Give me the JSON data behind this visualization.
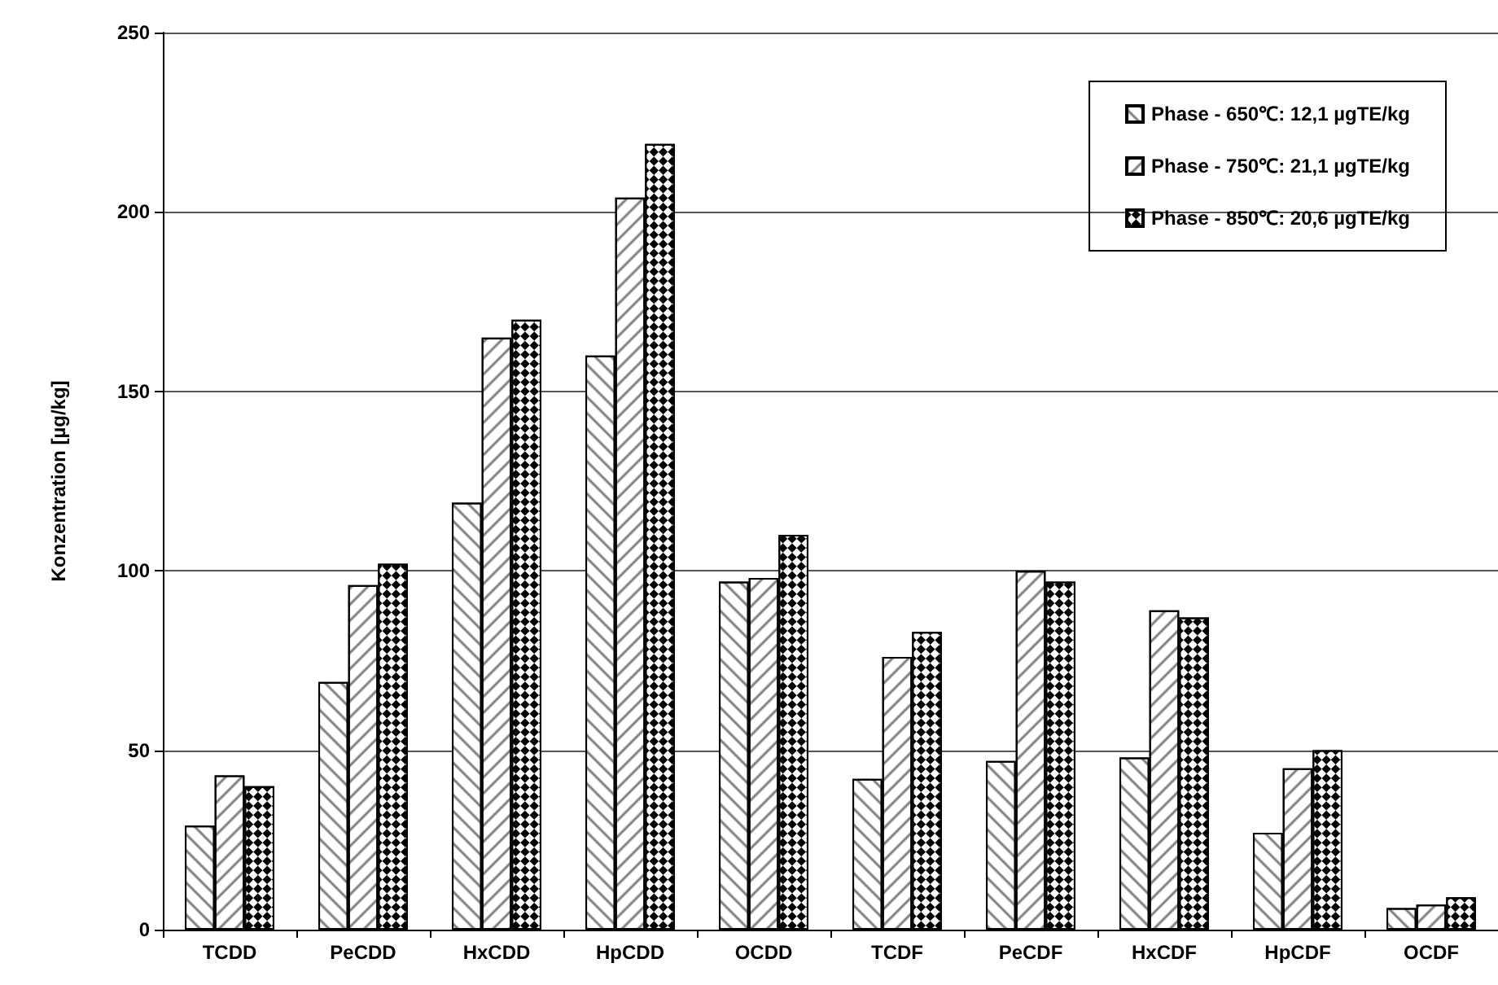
{
  "chart_data": {
    "type": "bar",
    "ylabel": "Konzentration [µg/kg]",
    "categories": [
      "TCDD",
      "PeCDD",
      "HxCDD",
      "HpCDD",
      "OCDD",
      "TCDF",
      "PeCDF",
      "HxCDF",
      "HpCDF",
      "OCDF"
    ],
    "series": [
      {
        "name": "Phase - 650℃: 12,1 µgTE/kg",
        "color": "#000000",
        "values": [
          29,
          69,
          119,
          160,
          97,
          42,
          47,
          48,
          27,
          6
        ]
      },
      {
        "name": "Phase - 750℃: 21,1 µgTE/kg",
        "color": "#000000",
        "values": [
          43,
          96,
          165,
          204,
          98,
          76,
          100,
          89,
          45,
          7
        ]
      },
      {
        "name": "Phase - 850℃: 20,6 µgTE/kg",
        "color": "#000000",
        "values": [
          40,
          102,
          170,
          219,
          110,
          83,
          97,
          87,
          50,
          9
        ]
      }
    ],
    "ylim": [
      0,
      250
    ],
    "yticks": [
      0,
      50,
      100,
      150,
      200,
      250
    ],
    "grid": "y",
    "legend": "top right"
  }
}
